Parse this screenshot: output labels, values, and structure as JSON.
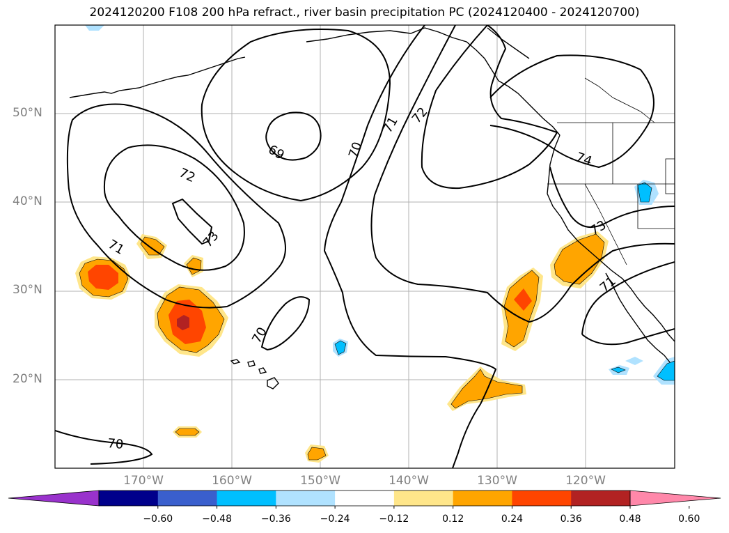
{
  "title": "2024120200 F108 200 hPa refract., river basin precipitation PC (2024120400 - 2024120700)",
  "map": {
    "lat_labels": [
      "50°N",
      "40°N",
      "30°N",
      "20°N"
    ],
    "lon_labels": [
      "170°W",
      "160°W",
      "150°W",
      "140°W",
      "130°W",
      "120°W"
    ],
    "contour_labels": [
      "69",
      "70",
      "71",
      "72",
      "73",
      "74",
      "70",
      "71",
      "72",
      "73",
      "70",
      "71"
    ]
  },
  "colorbar": {
    "ticks": [
      "−0.60",
      "−0.48",
      "−0.36",
      "−0.24",
      "−0.12",
      "0.12",
      "0.24",
      "0.36",
      "0.48",
      "0.60"
    ],
    "colors": [
      "#9932cc",
      "#00008b",
      "#3a5fcd",
      "#00bfff",
      "#b0e2ff",
      "#ffffff",
      "#ffe68a",
      "#ffa500",
      "#ff4500",
      "#b22222",
      "#ff88aa"
    ]
  },
  "colors": {
    "c012": "#ffe68a",
    "c024": "#ffa500",
    "c036": "#ff4500",
    "c048": "#b22222",
    "n012": "#b0e2ff",
    "n024": "#00bfff",
    "grid": "#b0b0b0"
  }
}
